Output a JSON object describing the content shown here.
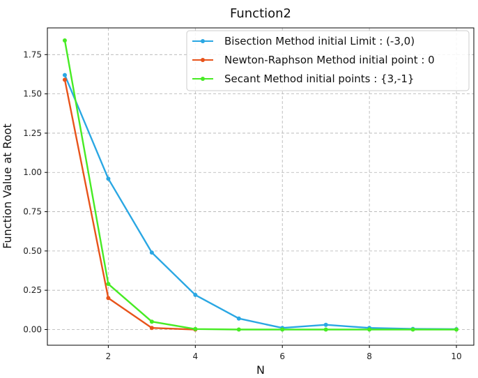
{
  "chart_data": {
    "type": "line",
    "title": "Function2",
    "xlabel": "N",
    "ylabel": "Function Value at Root",
    "xlim": [
      0.6,
      10.4
    ],
    "ylim": [
      -0.1,
      1.92
    ],
    "xticks": [
      2,
      4,
      6,
      8,
      10
    ],
    "xtick_labels": [
      "2",
      "4",
      "6",
      "8",
      "10"
    ],
    "yticks": [
      0.0,
      0.25,
      0.5,
      0.75,
      1.0,
      1.25,
      1.5,
      1.75
    ],
    "ytick_labels": [
      "0.00",
      "0.25",
      "0.50",
      "0.75",
      "1.00",
      "1.25",
      "1.50",
      "1.75"
    ],
    "grid": true,
    "grid_style": "dashed",
    "legend_position": "top-right",
    "series": [
      {
        "name": "Bisection Method initial Limit : (-3,0)",
        "color": "#2aa7e3",
        "x": [
          1,
          2,
          3,
          4,
          5,
          6,
          7,
          8,
          9,
          10
        ],
        "y": [
          1.62,
          0.96,
          0.49,
          0.22,
          0.07,
          0.01,
          0.03,
          0.01,
          0.004,
          0.002
        ]
      },
      {
        "name": "Newton-Raphson Method initial point : 0",
        "color": "#e8531a",
        "x": [
          1,
          2,
          3,
          4
        ],
        "y": [
          1.59,
          0.2,
          0.01,
          0.0
        ]
      },
      {
        "name": "Secant Method initial points : {3,-1}",
        "color": "#47eb24",
        "x": [
          1,
          2,
          3,
          4,
          5,
          6,
          7,
          8,
          9,
          10
        ],
        "y": [
          1.84,
          0.29,
          0.05,
          0.003,
          0.0,
          0.0,
          0.0,
          0.0,
          0.0,
          0.0
        ]
      }
    ]
  }
}
